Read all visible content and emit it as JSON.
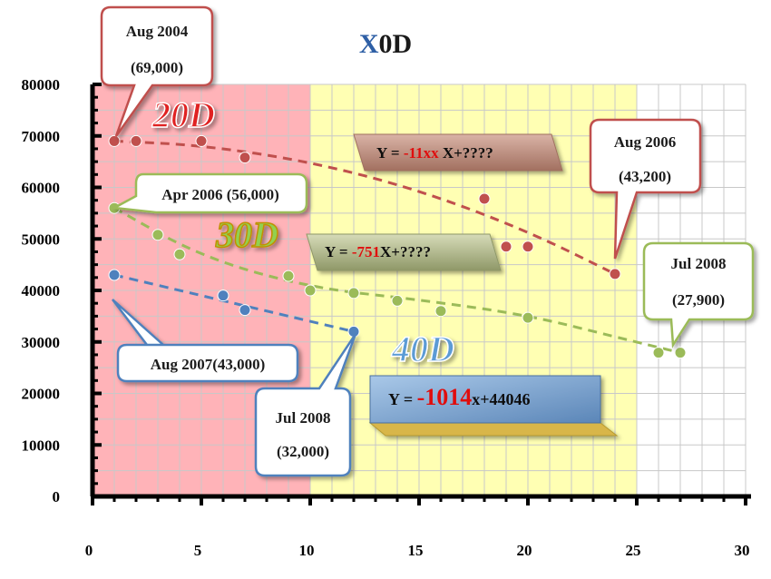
{
  "chart_data": {
    "type": "scatter",
    "title_part1": "X",
    "title_part2": "0D",
    "xlim": [
      0,
      30
    ],
    "ylim": [
      0,
      80000
    ],
    "x_ticks": [
      0,
      5,
      10,
      15,
      20,
      25,
      30
    ],
    "y_ticks": [
      0,
      10000,
      20000,
      30000,
      40000,
      50000,
      60000,
      70000,
      80000
    ],
    "regions": [
      {
        "from": 0,
        "to": 10,
        "color": "#ffb3b8"
      },
      {
        "from": 10,
        "to": 25,
        "color": "#ffffb3"
      },
      {
        "from": 25,
        "to": 30,
        "color": "#ffffff"
      }
    ],
    "series": [
      {
        "name": "20D",
        "color": "#c0504d",
        "label_color": "#e02020",
        "points": [
          [
            1,
            69000
          ],
          [
            2,
            69000
          ],
          [
            5,
            69000
          ],
          [
            7,
            65800
          ],
          [
            18,
            57800
          ],
          [
            19,
            48500
          ],
          [
            20,
            48500
          ],
          [
            24,
            43200
          ]
        ],
        "trend": [
          [
            1,
            69000
          ],
          [
            5,
            68200
          ],
          [
            10,
            65000
          ],
          [
            15,
            59500
          ],
          [
            20,
            51500
          ],
          [
            24,
            43200
          ]
        ]
      },
      {
        "name": "30D",
        "color": "#9bbb59",
        "label_color": "#92d050",
        "points": [
          [
            1,
            56000
          ],
          [
            3,
            50800
          ],
          [
            4,
            47000
          ],
          [
            9,
            42800
          ],
          [
            10,
            40000
          ],
          [
            12,
            39500
          ],
          [
            14,
            38000
          ],
          [
            16,
            36000
          ],
          [
            20,
            34700
          ],
          [
            26,
            27900
          ],
          [
            27,
            27900
          ]
        ],
        "trend": [
          [
            1,
            56000
          ],
          [
            5,
            46500
          ],
          [
            10,
            40500
          ],
          [
            15,
            38200
          ],
          [
            20,
            35200
          ],
          [
            24,
            31000
          ],
          [
            27,
            27900
          ]
        ]
      },
      {
        "name": "40D",
        "color": "#4f81bd",
        "label_color": "#5b9bd5",
        "points": [
          [
            1,
            43000
          ],
          [
            6,
            39000
          ],
          [
            7,
            36200
          ],
          [
            12,
            32000
          ]
        ],
        "trend": [
          [
            1,
            43000
          ],
          [
            5,
            39000
          ],
          [
            8,
            36000
          ],
          [
            12,
            32000
          ]
        ]
      }
    ],
    "callouts": [
      {
        "id": "aug2004",
        "lines": [
          "Aug 2004",
          "(69,000)"
        ],
        "border": "#c0504d"
      },
      {
        "id": "apr2006",
        "lines": [
          "Apr 2006 (56,000)"
        ],
        "border": "#9bbb59"
      },
      {
        "id": "aug2007",
        "lines": [
          "Aug 2007(43,000)"
        ],
        "border": "#4f81bd"
      },
      {
        "id": "jul2008b",
        "lines": [
          "Jul 2008",
          "(32,000)"
        ],
        "border": "#4f81bd"
      },
      {
        "id": "aug2006",
        "lines": [
          "Aug 2006",
          "(43,200)"
        ],
        "border": "#c0504d"
      },
      {
        "id": "jul2008g",
        "lines": [
          "Jul 2008",
          "(27,900)"
        ],
        "border": "#9bbb59"
      }
    ],
    "equations": [
      {
        "id": "eq20",
        "prefix": "Y = ",
        "coef": "-11xx",
        "suffix": " X+????"
      },
      {
        "id": "eq30",
        "prefix": "Y = ",
        "coef": "-751",
        "suffix": "X+????"
      },
      {
        "id": "eq40",
        "prefix": "Y = ",
        "coef": "-1014",
        "suffix": "x+44046"
      }
    ]
  }
}
